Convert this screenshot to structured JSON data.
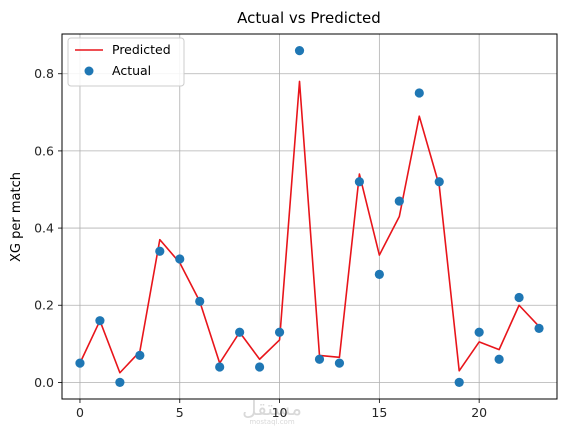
{
  "chart_data": {
    "type": "line",
    "title": "Actual vs Predicted",
    "xlabel": "",
    "ylabel": "XG per match",
    "xlim": [
      -0.9,
      23.9
    ],
    "ylim": [
      -0.043,
      0.903
    ],
    "xticks": [
      0,
      5,
      10,
      15,
      20
    ],
    "yticks": [
      0.0,
      0.2,
      0.4,
      0.6,
      0.8
    ],
    "xtick_labels": [
      "0",
      "5",
      "10",
      "15",
      "20"
    ],
    "ytick_labels": [
      "0.0",
      "0.2",
      "0.4",
      "0.6",
      "0.8"
    ],
    "grid": true,
    "legend_position": "top-left",
    "x": [
      0,
      1,
      2,
      3,
      4,
      5,
      6,
      7,
      8,
      9,
      10,
      11,
      12,
      13,
      14,
      15,
      16,
      17,
      18,
      19,
      20,
      21,
      22,
      23
    ],
    "series": [
      {
        "name": "Predicted",
        "kind": "line",
        "color": "#e8151b",
        "values": [
          0.05,
          0.16,
          0.025,
          0.08,
          0.37,
          0.31,
          0.21,
          0.05,
          0.13,
          0.06,
          0.11,
          0.78,
          0.07,
          0.065,
          0.54,
          0.33,
          0.43,
          0.69,
          0.51,
          0.03,
          0.105,
          0.085,
          0.2,
          0.145
        ]
      },
      {
        "name": "Actual",
        "kind": "scatter",
        "color": "#1f77b4",
        "values": [
          0.05,
          0.16,
          0.0,
          0.07,
          0.34,
          0.32,
          0.21,
          0.04,
          0.13,
          0.04,
          0.13,
          0.86,
          0.06,
          0.05,
          0.52,
          0.28,
          0.47,
          0.75,
          0.52,
          0.0,
          0.13,
          0.06,
          0.22,
          0.14
        ]
      }
    ]
  },
  "watermark": {
    "text": "مستقل",
    "subtext": "mostaql.com"
  }
}
